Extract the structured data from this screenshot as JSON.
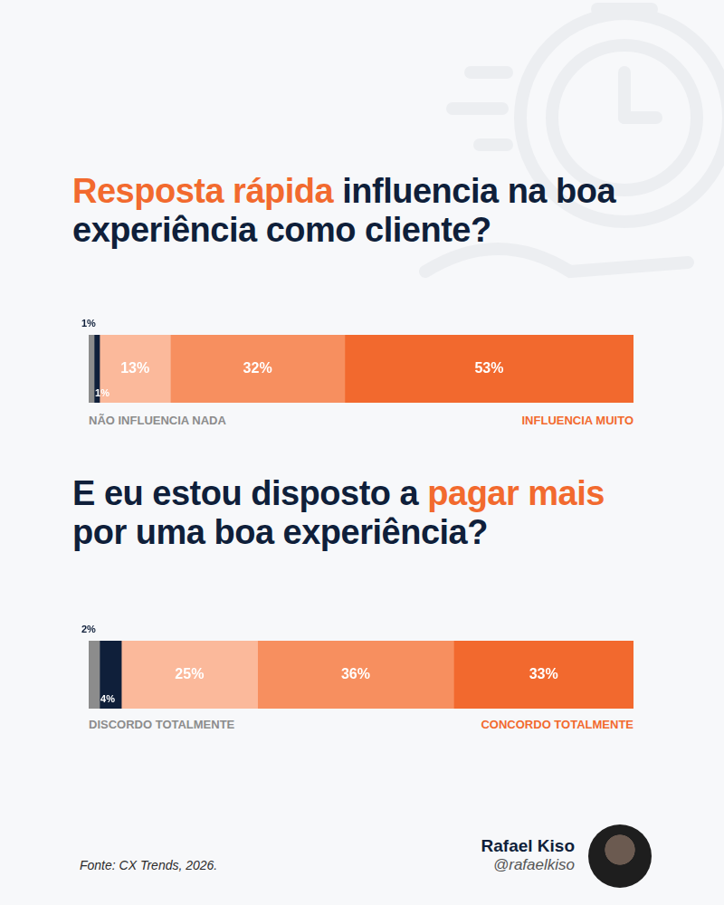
{
  "chart_data": [
    {
      "type": "bar",
      "orientation": "horizontal",
      "stacked": true,
      "title": [
        {
          "text": "Resposta rápida",
          "color": "#f26a2e"
        },
        {
          "text": " influencia na boa experiência como cliente?",
          "color": "#0f1f3a"
        }
      ],
      "categories": [
        null
      ],
      "xlim": [
        0,
        100
      ],
      "grid": false,
      "tick_labels": false,
      "data_labels": true,
      "series": [
        {
          "color": "#8c8c8c",
          "values": [
            1
          ],
          "value_labels": [
            "1%"
          ]
        },
        {
          "color": "#0f1f3a",
          "values": [
            1
          ],
          "value_labels": [
            "1%"
          ]
        },
        {
          "color": "#fbb99b",
          "values": [
            13
          ],
          "value_labels": [
            "13%"
          ]
        },
        {
          "color": "#f78f5f",
          "values": [
            32
          ],
          "value_labels": [
            "32%"
          ]
        },
        {
          "color": "#f2692e",
          "values": [
            53
          ],
          "value_labels": [
            "53%"
          ]
        }
      ],
      "annotations": [
        {
          "text": "NÃO INFLUENCIA NADA",
          "color": "#8c8c8c"
        },
        {
          "text": "INFLUENCIA MUITO",
          "color": "#f26a2e"
        }
      ]
    },
    {
      "type": "bar",
      "orientation": "horizontal",
      "stacked": true,
      "title": [
        {
          "text": "E eu estou disposto a ",
          "color": "#0f1f3a"
        },
        {
          "text": "pagar mais",
          "color": "#f26a2e"
        },
        {
          "text": " por uma boa experiência?",
          "color": "#0f1f3a"
        }
      ],
      "categories": [
        null
      ],
      "xlim": [
        0,
        100
      ],
      "grid": false,
      "tick_labels": false,
      "data_labels": true,
      "series": [
        {
          "color": "#8c8c8c",
          "values": [
            2
          ],
          "value_labels": [
            "2%"
          ]
        },
        {
          "color": "#0f1f3a",
          "values": [
            4
          ],
          "value_labels": [
            "4%"
          ]
        },
        {
          "color": "#fbb99b",
          "values": [
            25
          ],
          "value_labels": [
            "25%"
          ]
        },
        {
          "color": "#f78f5f",
          "values": [
            36
          ],
          "value_labels": [
            "36%"
          ]
        },
        {
          "color": "#f2692e",
          "values": [
            33
          ],
          "value_labels": [
            "33%"
          ]
        }
      ],
      "annotations": [
        {
          "text": "DISCORDO TOTALMENTE",
          "color": "#8c8c8c"
        },
        {
          "text": "CONCORDO TOTALMENTE",
          "color": "#f26a2e"
        }
      ]
    }
  ],
  "source": "Fonte: CX Trends, 2026.",
  "author": {
    "name": "Rafael Kiso",
    "handle": "@rafaelkiso"
  }
}
